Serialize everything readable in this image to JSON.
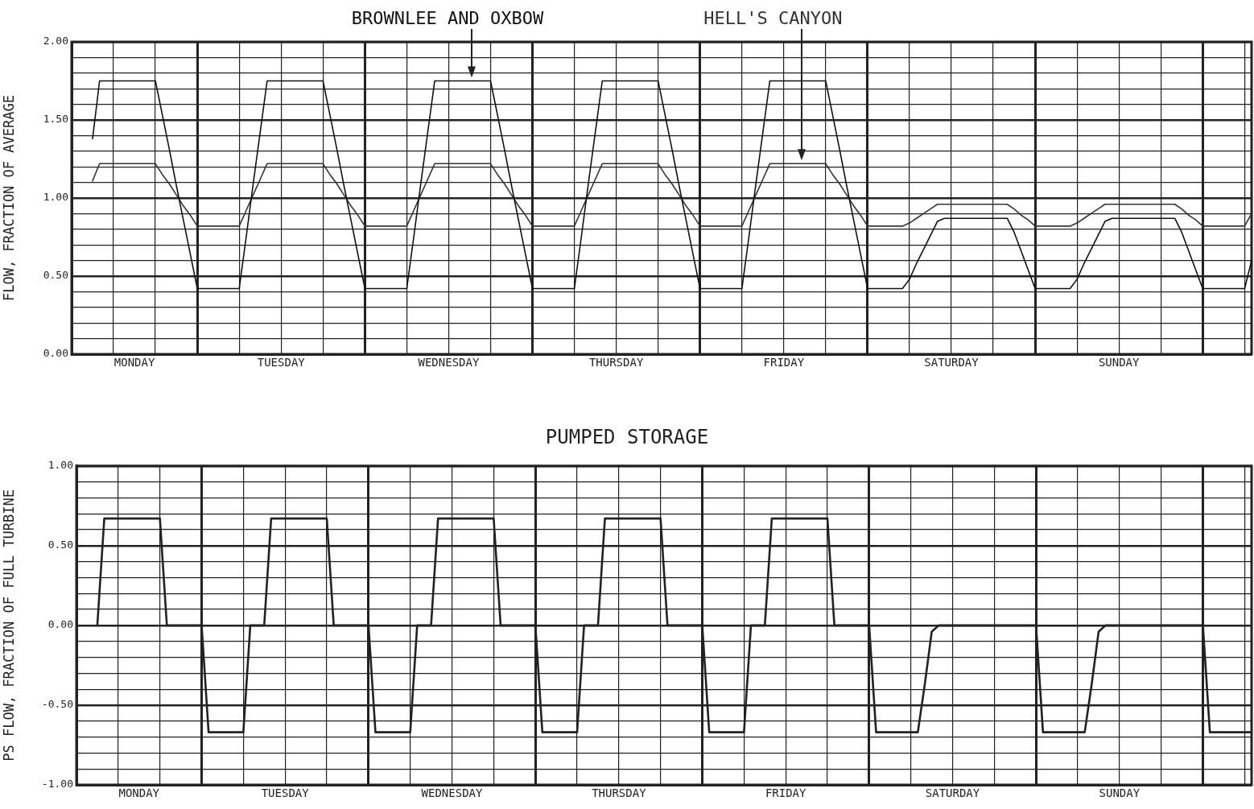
{
  "chart_data": [
    {
      "type": "line",
      "ylabel": "FLOW, FRACTION OF AVERAGE",
      "ylim": [
        0,
        2
      ],
      "categories": [
        null,
        null,
        null,
        null,
        null,
        null,
        null,
        null,
        null,
        "MONDAY",
        null,
        null,
        null,
        null,
        null,
        null,
        null,
        null,
        null,
        null,
        null,
        null,
        null,
        null,
        null,
        null,
        null,
        null,
        null,
        null,
        "TUESDAY",
        null,
        null,
        null,
        null,
        null,
        null,
        null,
        null,
        null,
        null,
        null,
        null,
        null,
        null,
        null,
        null,
        null,
        null,
        null,
        null,
        null,
        null,
        null,
        "WEDNESDAY",
        null,
        null,
        null,
        null,
        null,
        null,
        null,
        null,
        null,
        null,
        null,
        null,
        null,
        null,
        null,
        null,
        null,
        null,
        null,
        null,
        null,
        null,
        null,
        "THURSDAY",
        null,
        null,
        null,
        null,
        null,
        null,
        null,
        null,
        null,
        null,
        null,
        null,
        null,
        null,
        null,
        null,
        null,
        null,
        null,
        null,
        null,
        null,
        null,
        "FRIDAY",
        null,
        null,
        null,
        null,
        null,
        null,
        null,
        null,
        null,
        null,
        null,
        null,
        null,
        null,
        null,
        null,
        null,
        null,
        null,
        null,
        null,
        null,
        null,
        "SATURDAY",
        null,
        null,
        null,
        null,
        null,
        null,
        null,
        null,
        null,
        null,
        null,
        null,
        null,
        null,
        null,
        null,
        null,
        null,
        null,
        null,
        null,
        null,
        null,
        "SUNDAY",
        null,
        null,
        null,
        null,
        null,
        null,
        null,
        null,
        null,
        null,
        null,
        null,
        null,
        null,
        null,
        null,
        null,
        null,
        null
      ],
      "yticks": [
        {
          "value": 0,
          "label": "0.00"
        },
        {
          "value": 0.1,
          "label": null
        },
        {
          "value": 0.2,
          "label": null
        },
        {
          "value": 0.3,
          "label": null
        },
        {
          "value": 0.4,
          "label": null
        },
        {
          "value": 0.5,
          "label": "0.50"
        },
        {
          "value": 0.6,
          "label": null
        },
        {
          "value": 0.7,
          "label": null
        },
        {
          "value": 0.8,
          "label": null
        },
        {
          "value": 0.9,
          "label": null
        },
        {
          "value": 1,
          "label": "1.00"
        },
        {
          "value": 1.1,
          "label": null
        },
        {
          "value": 1.2,
          "label": null
        },
        {
          "value": 1.3,
          "label": null
        },
        {
          "value": 1.4,
          "label": null
        },
        {
          "value": 1.5,
          "label": "1.50"
        },
        {
          "value": 1.6,
          "label": null
        },
        {
          "value": 1.7,
          "label": null
        },
        {
          "value": 1.8,
          "label": null
        },
        {
          "value": 1.9,
          "label": null
        },
        {
          "value": 2,
          "label": "2.00"
        }
      ],
      "grid": true,
      "marker": "none",
      "line_style": "solid",
      "series": [
        {
          "name": "BROWNLEE AND OXBOW",
          "color": "#111111",
          "values": [
            null,
            null,
            null,
            1.38,
            1.75,
            1.75,
            1.75,
            1.75,
            1.75,
            1.75,
            1.75,
            1.75,
            1.75,
            1.53,
            1.31,
            1.08,
            0.86,
            0.64,
            0.42,
            0.42,
            0.42,
            0.42,
            0.42,
            0.42,
            0.42,
            0.75,
            1.09,
            1.42,
            1.75,
            1.75,
            1.75,
            1.75,
            1.75,
            1.75,
            1.75,
            1.75,
            1.75,
            1.53,
            1.31,
            1.08,
            0.86,
            0.64,
            0.42,
            0.42,
            0.42,
            0.42,
            0.42,
            0.42,
            0.42,
            0.75,
            1.09,
            1.42,
            1.75,
            1.75,
            1.75,
            1.75,
            1.75,
            1.75,
            1.75,
            1.75,
            1.75,
            1.53,
            1.31,
            1.08,
            0.86,
            0.64,
            0.42,
            0.42,
            0.42,
            0.42,
            0.42,
            0.42,
            0.42,
            0.75,
            1.09,
            1.42,
            1.75,
            1.75,
            1.75,
            1.75,
            1.75,
            1.75,
            1.75,
            1.75,
            1.75,
            1.53,
            1.31,
            1.08,
            0.86,
            0.64,
            0.42,
            0.42,
            0.42,
            0.42,
            0.42,
            0.42,
            0.42,
            0.75,
            1.09,
            1.42,
            1.75,
            1.75,
            1.75,
            1.75,
            1.75,
            1.75,
            1.75,
            1.75,
            1.75,
            1.53,
            1.31,
            1.08,
            0.86,
            0.64,
            0.42,
            0.42,
            0.42,
            0.42,
            0.42,
            0.42,
            0.48,
            0.58,
            0.67,
            0.76,
            0.85,
            0.87,
            0.87,
            0.87,
            0.87,
            0.87,
            0.87,
            0.87,
            0.87,
            0.87,
            0.87,
            0.78,
            0.66,
            0.54,
            0.42,
            0.42,
            0.42,
            0.42,
            0.42,
            0.42,
            0.48,
            0.58,
            0.67,
            0.76,
            0.85,
            0.87,
            0.87,
            0.87,
            0.87,
            0.87,
            0.87,
            0.87,
            0.87,
            0.87,
            0.87,
            0.78,
            0.66,
            0.54,
            0.42,
            0.42,
            0.42,
            0.42,
            0.42,
            0.42,
            0.42,
            0.6
          ]
        },
        {
          "name": "HELL'S CANYON",
          "color": "#333333",
          "values": [
            null,
            null,
            null,
            1.11,
            1.22,
            1.22,
            1.22,
            1.22,
            1.22,
            1.22,
            1.22,
            1.22,
            1.22,
            1.15,
            1.09,
            1.02,
            0.95,
            0.89,
            0.82,
            0.82,
            0.82,
            0.82,
            0.82,
            0.82,
            0.82,
            0.92,
            1.02,
            1.12,
            1.22,
            1.22,
            1.22,
            1.22,
            1.22,
            1.22,
            1.22,
            1.22,
            1.22,
            1.15,
            1.09,
            1.02,
            0.95,
            0.89,
            0.82,
            0.82,
            0.82,
            0.82,
            0.82,
            0.82,
            0.82,
            0.92,
            1.02,
            1.12,
            1.22,
            1.22,
            1.22,
            1.22,
            1.22,
            1.22,
            1.22,
            1.22,
            1.22,
            1.15,
            1.09,
            1.02,
            0.95,
            0.89,
            0.82,
            0.82,
            0.82,
            0.82,
            0.82,
            0.82,
            0.82,
            0.92,
            1.02,
            1.12,
            1.22,
            1.22,
            1.22,
            1.22,
            1.22,
            1.22,
            1.22,
            1.22,
            1.22,
            1.15,
            1.09,
            1.02,
            0.95,
            0.89,
            0.82,
            0.82,
            0.82,
            0.82,
            0.82,
            0.82,
            0.82,
            0.92,
            1.02,
            1.12,
            1.22,
            1.22,
            1.22,
            1.22,
            1.22,
            1.22,
            1.22,
            1.22,
            1.22,
            1.15,
            1.09,
            1.02,
            0.95,
            0.89,
            0.82,
            0.82,
            0.82,
            0.82,
            0.82,
            0.82,
            0.84,
            0.87,
            0.9,
            0.93,
            0.96,
            0.96,
            0.96,
            0.96,
            0.96,
            0.96,
            0.96,
            0.96,
            0.96,
            0.96,
            0.96,
            0.93,
            0.89,
            0.86,
            0.82,
            0.82,
            0.82,
            0.82,
            0.82,
            0.82,
            0.84,
            0.87,
            0.9,
            0.93,
            0.96,
            0.96,
            0.96,
            0.96,
            0.96,
            0.96,
            0.96,
            0.96,
            0.96,
            0.96,
            0.96,
            0.93,
            0.89,
            0.86,
            0.82,
            0.82,
            0.82,
            0.82,
            0.82,
            0.82,
            0.82,
            0.9
          ]
        }
      ]
    },
    {
      "type": "line",
      "title": "PUMPED STORAGE",
      "ylabel": "PS FLOW, FRACTION OF FULL TURBINE",
      "ylim": [
        -1,
        1
      ],
      "categories": [
        null,
        null,
        null,
        null,
        null,
        null,
        null,
        null,
        null,
        "MONDAY",
        null,
        null,
        null,
        null,
        null,
        null,
        null,
        null,
        null,
        null,
        null,
        null,
        null,
        null,
        null,
        null,
        null,
        null,
        null,
        null,
        "TUESDAY",
        null,
        null,
        null,
        null,
        null,
        null,
        null,
        null,
        null,
        null,
        null,
        null,
        null,
        null,
        null,
        null,
        null,
        null,
        null,
        null,
        null,
        null,
        null,
        "WEDNESDAY",
        null,
        null,
        null,
        null,
        null,
        null,
        null,
        null,
        null,
        null,
        null,
        null,
        null,
        null,
        null,
        null,
        null,
        null,
        null,
        null,
        null,
        null,
        null,
        "THURSDAY",
        null,
        null,
        null,
        null,
        null,
        null,
        null,
        null,
        null,
        null,
        null,
        null,
        null,
        null,
        null,
        null,
        null,
        null,
        null,
        null,
        null,
        null,
        null,
        "FRIDAY",
        null,
        null,
        null,
        null,
        null,
        null,
        null,
        null,
        null,
        null,
        null,
        null,
        null,
        null,
        null,
        null,
        null,
        null,
        null,
        null,
        null,
        null,
        null,
        "SATURDAY",
        null,
        null,
        null,
        null,
        null,
        null,
        null,
        null,
        null,
        null,
        null,
        null,
        null,
        null,
        null,
        null,
        null,
        null,
        null,
        null,
        null,
        null,
        null,
        "SUNDAY",
        null,
        null,
        null,
        null,
        null,
        null,
        null,
        null,
        null,
        null,
        null,
        null,
        null,
        null,
        null,
        null,
        null,
        null,
        null
      ],
      "yticks": [
        {
          "value": -1,
          "label": "-1.00"
        },
        {
          "value": -0.9,
          "label": null
        },
        {
          "value": -0.8,
          "label": null
        },
        {
          "value": -0.7,
          "label": null
        },
        {
          "value": -0.6,
          "label": null
        },
        {
          "value": -0.5,
          "label": "-0.50"
        },
        {
          "value": -0.4,
          "label": null
        },
        {
          "value": -0.3,
          "label": null
        },
        {
          "value": -0.2,
          "label": null
        },
        {
          "value": -0.1,
          "label": null
        },
        {
          "value": 0,
          "label": "0.00"
        },
        {
          "value": 0.1,
          "label": null
        },
        {
          "value": 0.2,
          "label": null
        },
        {
          "value": 0.3,
          "label": null
        },
        {
          "value": 0.4,
          "label": null
        },
        {
          "value": 0.5,
          "label": "0.50"
        },
        {
          "value": 0.6,
          "label": null
        },
        {
          "value": 0.7,
          "label": null
        },
        {
          "value": 0.8,
          "label": null
        },
        {
          "value": 0.9,
          "label": null
        },
        {
          "value": 1,
          "label": "1.00"
        }
      ],
      "grid": true,
      "marker": "none",
      "line_style": "solid",
      "series": [
        {
          "color": "#222222",
          "values": [
            null,
            null,
            null,
            0,
            0.67,
            0.67,
            0.67,
            0.67,
            0.67,
            0.67,
            0.67,
            0.67,
            0.67,
            0,
            0,
            0,
            0,
            0,
            0,
            -0.67,
            -0.67,
            -0.67,
            -0.67,
            -0.67,
            -0.67,
            0,
            0,
            0,
            0.67,
            0.67,
            0.67,
            0.67,
            0.67,
            0.67,
            0.67,
            0.67,
            0.67,
            0,
            0,
            0,
            0,
            0,
            0,
            -0.67,
            -0.67,
            -0.67,
            -0.67,
            -0.67,
            -0.67,
            0,
            0,
            0,
            0.67,
            0.67,
            0.67,
            0.67,
            0.67,
            0.67,
            0.67,
            0.67,
            0.67,
            0,
            0,
            0,
            0,
            0,
            0,
            -0.67,
            -0.67,
            -0.67,
            -0.67,
            -0.67,
            -0.67,
            0,
            0,
            0,
            0.67,
            0.67,
            0.67,
            0.67,
            0.67,
            0.67,
            0.67,
            0.67,
            0.67,
            0,
            0,
            0,
            0,
            0,
            0,
            -0.67,
            -0.67,
            -0.67,
            -0.67,
            -0.67,
            -0.67,
            0,
            0,
            0,
            0.67,
            0.67,
            0.67,
            0.67,
            0.67,
            0.67,
            0.67,
            0.67,
            0.67,
            0,
            0,
            0,
            0,
            0,
            0,
            -0.67,
            -0.67,
            -0.67,
            -0.67,
            -0.67,
            -0.67,
            -0.67,
            -0.37,
            -0.04,
            0,
            0,
            0,
            0,
            0,
            0,
            0,
            0,
            0,
            0,
            0,
            0,
            0,
            0,
            0,
            -0.67,
            -0.67,
            -0.67,
            -0.67,
            -0.67,
            -0.67,
            -0.67,
            -0.37,
            -0.04,
            0,
            0,
            0,
            0,
            0,
            0,
            0,
            0,
            0,
            0,
            0,
            0,
            0,
            0,
            0,
            -0.67,
            -0.67,
            -0.67,
            -0.67,
            -0.67,
            -0.67,
            -0.67
          ]
        }
      ]
    }
  ]
}
